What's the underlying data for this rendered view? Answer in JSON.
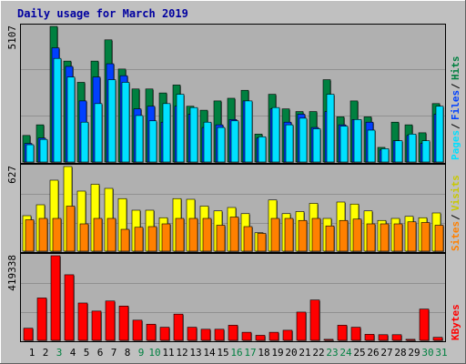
{
  "chart_data": [
    {
      "type": "bar",
      "title": "Daily usage for March 2019",
      "ymax_label": "5107",
      "legend": [
        "Pages",
        "Files",
        "Hits"
      ],
      "categories": [
        "1",
        "2",
        "3",
        "4",
        "5",
        "6",
        "7",
        "8",
        "9",
        "10",
        "11",
        "12",
        "13",
        "14",
        "15",
        "16",
        "17",
        "18",
        "19",
        "20",
        "21",
        "22",
        "23",
        "24",
        "25",
        "26",
        "27",
        "28",
        "29",
        "30",
        "31"
      ],
      "series": [
        {
          "name": "Hits",
          "values": [
            1000,
            1400,
            5107,
            3800,
            3000,
            3800,
            4600,
            3500,
            2750,
            2750,
            2600,
            2900,
            2100,
            1950,
            2300,
            2400,
            2700,
            1050,
            2550,
            2000,
            1900,
            1900,
            3100,
            1700,
            2300,
            1700,
            550,
            1500,
            1400,
            1100,
            2200
          ]
        },
        {
          "name": "Files",
          "values": [
            700,
            900,
            4300,
            3600,
            2300,
            3200,
            3700,
            3250,
            2000,
            2100,
            1500,
            2100,
            1800,
            1300,
            1400,
            1600,
            2300,
            900,
            2000,
            1500,
            1800,
            1300,
            1900,
            1400,
            1600,
            1500,
            450,
            800,
            1000,
            700,
            1800
          ]
        },
        {
          "name": "Pages",
          "values": [
            650,
            850,
            3900,
            3200,
            1500,
            2200,
            3100,
            3000,
            1750,
            1550,
            2200,
            2550,
            2050,
            1500,
            1300,
            1550,
            2300,
            950,
            2050,
            1400,
            1650,
            1250,
            2550,
            1350,
            1600,
            1200,
            500,
            800,
            1050,
            800,
            2100
          ]
        }
      ],
      "colors": {
        "Hits": "#008040",
        "Files": "#0040ff",
        "Pages": "#00e0ff"
      }
    },
    {
      "type": "bar",
      "ymax_label": "627",
      "legend": [
        "Sites",
        "Visits"
      ],
      "categories": [
        "1",
        "2",
        "3",
        "4",
        "5",
        "6",
        "7",
        "8",
        "9",
        "10",
        "11",
        "12",
        "13",
        "14",
        "15",
        "16",
        "17",
        "18",
        "19",
        "20",
        "21",
        "22",
        "23",
        "24",
        "25",
        "26",
        "27",
        "28",
        "29",
        "30",
        "31"
      ],
      "series": [
        {
          "name": "Visits",
          "values": [
            260,
            340,
            520,
            620,
            440,
            490,
            460,
            385,
            300,
            300,
            245,
            385,
            380,
            330,
            295,
            320,
            275,
            135,
            375,
            275,
            290,
            350,
            240,
            360,
            345,
            295,
            225,
            240,
            255,
            245,
            280
          ]
        },
        {
          "name": "Sites",
          "values": [
            230,
            240,
            240,
            330,
            200,
            240,
            240,
            160,
            175,
            180,
            200,
            240,
            240,
            240,
            190,
            250,
            180,
            130,
            240,
            240,
            225,
            240,
            185,
            225,
            235,
            200,
            200,
            200,
            215,
            210,
            190
          ]
        }
      ],
      "colors": {
        "Visits": "#ffff00",
        "Sites": "#ff8000"
      }
    },
    {
      "type": "bar",
      "ymax_label": "419338",
      "legend": [
        "KBytes"
      ],
      "categories": [
        "1",
        "2",
        "3",
        "4",
        "5",
        "6",
        "7",
        "8",
        "9",
        "10",
        "11",
        "12",
        "13",
        "14",
        "15",
        "16",
        "17",
        "18",
        "19",
        "20",
        "21",
        "22",
        "23",
        "24",
        "25",
        "26",
        "27",
        "28",
        "29",
        "30",
        "31"
      ],
      "series": [
        {
          "name": "KBytes",
          "values": [
            60000,
            210000,
            419338,
            325000,
            185000,
            145000,
            195000,
            170000,
            100000,
            80000,
            65000,
            130000,
            65000,
            55000,
            55000,
            75000,
            40000,
            25000,
            40000,
            50000,
            140000,
            200000,
            5000,
            75000,
            65000,
            30000,
            28000,
            28000,
            5000,
            155000,
            15000
          ]
        }
      ],
      "colors": {
        "KBytes": "#ff0000"
      }
    }
  ],
  "x_label_colors": [
    "#000000",
    "#000000",
    "#008040",
    "#000000",
    "#000000",
    "#000000",
    "#000000",
    "#000000",
    "#008040",
    "#008040",
    "#000000",
    "#000000",
    "#000000",
    "#000000",
    "#000000",
    "#008040",
    "#008040",
    "#000000",
    "#000000",
    "#000000",
    "#000000",
    "#000000",
    "#008040",
    "#008040",
    "#000000",
    "#000000",
    "#000000",
    "#000000",
    "#000000",
    "#008040",
    "#008040"
  ]
}
